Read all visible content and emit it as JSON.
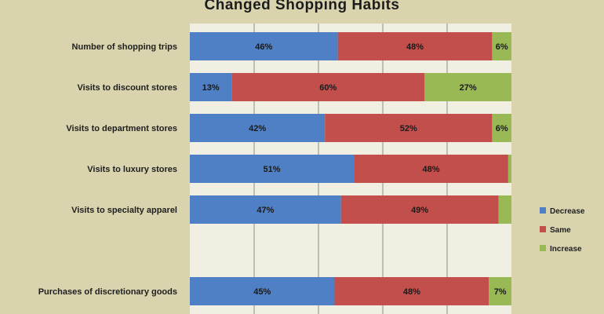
{
  "chart_data": {
    "type": "bar",
    "orientation": "horizontal",
    "stacked": true,
    "title": "Changed Shopping Habits",
    "categories": [
      "Number of shopping trips",
      "Visits to discount stores",
      "Visits to department stores",
      "Visits to luxury stores",
      "Visits to specialty apparel",
      "",
      "Purchases of discretionary goods"
    ],
    "series": [
      {
        "name": "Decrease",
        "color": "#4f7fc4",
        "values": [
          46,
          13,
          42,
          51,
          47,
          null,
          45
        ]
      },
      {
        "name": "Same",
        "color": "#c24f4c",
        "values": [
          48,
          60,
          52,
          48,
          49,
          null,
          48
        ]
      },
      {
        "name": "Increase",
        "color": "#98b954",
        "values": [
          6,
          27,
          6,
          1,
          4,
          null,
          7
        ]
      }
    ],
    "data_labels": [
      [
        "46%",
        "48%",
        "6%"
      ],
      [
        "13%",
        "60%",
        "27%"
      ],
      [
        "42%",
        "52%",
        "6%"
      ],
      [
        "51%",
        "48%",
        ""
      ],
      [
        "47%",
        "49%",
        ""
      ],
      [
        "",
        "",
        ""
      ],
      [
        "45%",
        "48%",
        "7%"
      ]
    ],
    "xlim": [
      0,
      100
    ],
    "grid": true,
    "legend_position": "right",
    "plot_background": "#f1eee2",
    "gridline_color": "#8c8c8c"
  }
}
